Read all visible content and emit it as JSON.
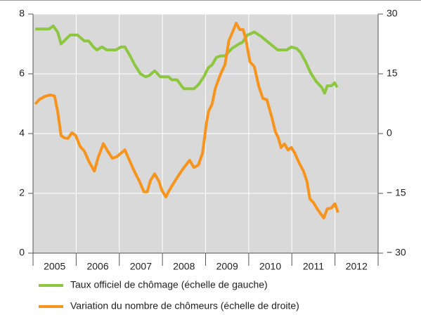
{
  "chart_data": {
    "type": "line",
    "categories": [
      "2005",
      "2006",
      "2007",
      "2008",
      "2009",
      "2010",
      "2011",
      "2012"
    ],
    "xlim": [
      2005,
      2013
    ],
    "ylim": [
      0,
      8
    ],
    "yticks": [
      0,
      2,
      4,
      6,
      8
    ],
    "y2lim": [
      -30,
      30
    ],
    "y2ticks": [
      {
        "value": -30,
        "label": "− 30"
      },
      {
        "value": -15,
        "label": "− 15"
      },
      0,
      15,
      30
    ],
    "grid": true,
    "legend": "bottom",
    "background": "#d9d9d9",
    "series": [
      {
        "name": "Taux officiel de chômage (échelle de gauche)",
        "color": "#8dc63f",
        "x": [
          2005.05,
          2005.37,
          2005.47,
          2005.57,
          2005.65,
          2005.86,
          2006.03,
          2006.19,
          2006.29,
          2006.4,
          2006.48,
          2006.6,
          2006.71,
          2006.92,
          2007.04,
          2007.13,
          2007.25,
          2007.36,
          2007.49,
          2007.61,
          2007.7,
          2007.82,
          2007.95,
          2008.14,
          2008.22,
          2008.34,
          2008.44,
          2008.5,
          2008.73,
          2008.84,
          2008.96,
          2009.06,
          2009.15,
          2009.25,
          2009.35,
          2009.45,
          2009.61,
          2009.77,
          2009.85,
          2009.97,
          2010.13,
          2010.29,
          2010.5,
          2010.67,
          2010.88,
          2010.99,
          2011.11,
          2011.21,
          2011.32,
          2011.43,
          2011.56,
          2011.69,
          2011.76,
          2011.82,
          2011.92,
          2011.99,
          2012.05
        ],
        "values": [
          7.5,
          7.5,
          7.6,
          7.4,
          7.0,
          7.3,
          7.3,
          7.1,
          7.1,
          6.9,
          6.8,
          6.9,
          6.8,
          6.8,
          6.9,
          6.9,
          6.6,
          6.3,
          6.0,
          5.9,
          5.95,
          6.1,
          5.9,
          5.9,
          5.8,
          5.8,
          5.6,
          5.5,
          5.5,
          5.65,
          5.9,
          6.2,
          6.3,
          6.55,
          6.6,
          6.6,
          6.85,
          7.0,
          7.05,
          7.3,
          7.4,
          7.25,
          7.0,
          6.8,
          6.8,
          6.9,
          6.85,
          6.7,
          6.4,
          6.05,
          5.75,
          5.55,
          5.35,
          5.6,
          5.6,
          5.7,
          5.55
        ]
      },
      {
        "name": "Variation du nombre de chômeurs (échelle de droite)",
        "color": "#f7941d",
        "axis": "y2",
        "x": [
          2005.05,
          2005.15,
          2005.29,
          2005.41,
          2005.5,
          2005.57,
          2005.65,
          2005.73,
          2005.81,
          2005.9,
          2005.99,
          2006.09,
          2006.19,
          2006.3,
          2006.42,
          2006.51,
          2006.63,
          2006.73,
          2006.84,
          2006.94,
          2007.04,
          2007.13,
          2007.25,
          2007.36,
          2007.46,
          2007.57,
          2007.65,
          2007.72,
          2007.82,
          2007.92,
          2007.98,
          2008.08,
          2008.14,
          2008.26,
          2008.39,
          2008.5,
          2008.63,
          2008.73,
          2008.83,
          2008.93,
          2009.02,
          2009.07,
          2009.15,
          2009.23,
          2009.35,
          2009.45,
          2009.54,
          2009.63,
          2009.71,
          2009.79,
          2009.87,
          2009.93,
          2010.03,
          2010.13,
          2010.23,
          2010.33,
          2010.42,
          2010.54,
          2010.62,
          2010.68,
          2010.75,
          2010.83,
          2010.91,
          2010.99,
          2011.07,
          2011.17,
          2011.27,
          2011.35,
          2011.42,
          2011.5,
          2011.6,
          2011.68,
          2011.74,
          2011.82,
          2011.91,
          2012.0,
          2012.07
        ],
        "values": [
          7.4,
          8.6,
          9.4,
          9.7,
          9.4,
          5.6,
          -0.5,
          -1.1,
          -1.2,
          0.2,
          -0.5,
          -3.2,
          -4.4,
          -7.1,
          -9.4,
          -6.0,
          -2.5,
          -4.4,
          -6.2,
          -5.8,
          -4.9,
          -4.1,
          -7.1,
          -9.7,
          -11.8,
          -14.6,
          -14.6,
          -11.8,
          -10.1,
          -12.0,
          -14.1,
          -15.9,
          -14.6,
          -12.4,
          -10.2,
          -8.5,
          -6.7,
          -8.5,
          -7.9,
          -4.9,
          2.6,
          5.6,
          7.4,
          11.5,
          15.0,
          17.3,
          23.3,
          25.6,
          27.7,
          26.1,
          26.1,
          23.8,
          18.0,
          16.8,
          12.0,
          8.8,
          8.5,
          3.9,
          0.4,
          -0.9,
          -3.5,
          -2.6,
          -4.1,
          -3.5,
          -4.9,
          -7.4,
          -9.4,
          -12.0,
          -16.4,
          -17.3,
          -19.1,
          -20.3,
          -21.2,
          -18.9,
          -18.7,
          -17.6,
          -19.8
        ]
      }
    ]
  }
}
